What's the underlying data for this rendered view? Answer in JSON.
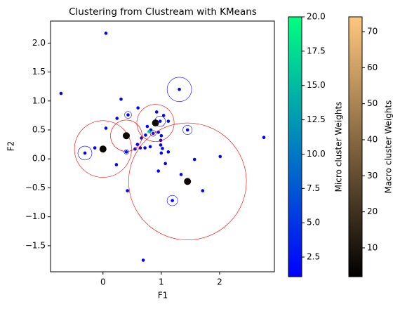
{
  "chart_data": {
    "type": "scatter",
    "title": "Clustering from Clustream with KMeans",
    "x_label": "F1",
    "y_label": "F2",
    "xlim": [
      -0.9,
      2.94
    ],
    "ylim": [
      -1.95,
      2.38
    ],
    "xticks": [
      0,
      1,
      2
    ],
    "yticks": [
      {
        "value": -1.5,
        "label": "−1.5"
      },
      {
        "value": -1.0,
        "label": "−1.0"
      },
      {
        "value": -0.5,
        "label": "−0.5"
      },
      {
        "value": 0.0,
        "label": "0.0"
      },
      {
        "value": 0.5,
        "label": "0.5"
      },
      {
        "value": 1.0,
        "label": "1.0"
      },
      {
        "value": 1.5,
        "label": "1.5"
      },
      {
        "value": 2.0,
        "label": "2.0"
      }
    ],
    "micro_clusters": {
      "ring_color": "#0000ff",
      "x": [
        0.05,
        -0.72,
        1.31,
        0.31,
        0.43,
        0.6,
        0.24,
        1.04,
        0.92,
        0.05,
        1.45,
        1.12,
        0.98,
        0.76,
        0.82,
        0.73,
        0.66,
        0.86,
        0.95,
        1.0,
        0.99,
        0.99,
        1.02,
        1.12,
        1.0,
        0.72,
        0.64,
        0.59,
        0.55,
        0.81,
        0.4,
        -0.14,
        -0.31,
        0.23,
        1.07,
        0.95,
        1.34,
        1.57,
        2.01,
        2.76,
        0.42,
        1.71,
        1.19,
        0.69,
        0.79
      ],
      "y": [
        2.17,
        1.13,
        1.2,
        1.03,
        0.76,
        0.88,
        0.7,
        0.75,
        0.81,
        0.53,
        0.5,
        0.65,
        0.65,
        0.56,
        0.5,
        0.41,
        0.36,
        0.44,
        0.46,
        0.4,
        0.32,
        0.24,
        0.18,
        0.12,
        0.1,
        0.19,
        0.19,
        0.25,
        0.17,
        0.21,
        0.12,
        0.19,
        0.1,
        -0.1,
        -0.08,
        -0.21,
        -0.27,
        -0.01,
        0.04,
        0.37,
        -0.55,
        -0.55,
        -0.72,
        -1.75,
        0.47
      ],
      "weights": [
        1.2,
        1.2,
        1.5,
        1.2,
        1.3,
        1.5,
        1.2,
        1.2,
        1.3,
        1.2,
        1.3,
        1.2,
        1.4,
        1.6,
        1.8,
        1.5,
        1.3,
        2.5,
        1.4,
        1.3,
        1.2,
        1.2,
        1.2,
        1.2,
        1.3,
        1.3,
        1.2,
        1.2,
        1.2,
        1.2,
        1.3,
        1.2,
        1.4,
        1.2,
        1.2,
        1.2,
        1.2,
        1.2,
        1.2,
        1.2,
        1.2,
        1.2,
        1.3,
        1.2,
        16
      ],
      "radii": [
        0.02,
        0.02,
        0.21,
        0.02,
        0.06,
        0.02,
        0.02,
        0.02,
        0.02,
        0.02,
        0.08,
        0.02,
        0.09,
        0.02,
        0.02,
        0.02,
        0.02,
        0.05,
        0.02,
        0.02,
        0.02,
        0.02,
        0.02,
        0.02,
        0.02,
        0.02,
        0.02,
        0.02,
        0.02,
        0.02,
        0.04,
        0.02,
        0.12,
        0.02,
        0.02,
        0.02,
        0.02,
        0.02,
        0.02,
        0.02,
        0.02,
        0.02,
        0.09,
        0.02,
        0.02
      ]
    },
    "macro_clusters": {
      "ring_color": "#ff0000",
      "x": [
        0.0,
        0.4,
        0.9,
        1.45
      ],
      "y": [
        0.17,
        0.4,
        0.62,
        -0.39
      ],
      "weights": [
        4,
        5,
        6,
        5
      ],
      "radii": [
        0.49,
        0.27,
        0.32,
        1.01
      ]
    },
    "colorbars": [
      {
        "label": "Micro cluster Weights",
        "lim": [
          1.07,
          20
        ],
        "colormap": [
          "#0000ff",
          "#00ff80"
        ],
        "ticks": [
          {
            "value": 2.5,
            "label": "2.5"
          },
          {
            "value": 5,
            "label": "5.0"
          },
          {
            "value": 7.5,
            "label": "7.5"
          },
          {
            "value": 10,
            "label": "10.0"
          },
          {
            "value": 12.5,
            "label": "12.5"
          },
          {
            "value": 15,
            "label": "15.0"
          },
          {
            "value": 17.5,
            "label": "17.5"
          },
          {
            "value": 20,
            "label": "20.0"
          }
        ]
      },
      {
        "label": "Macro cluster Weights",
        "lim": [
          2.0,
          74.1
        ],
        "colormap": [
          "#000000",
          "#ffc77f"
        ],
        "ticks": [
          10,
          20,
          30,
          40,
          50,
          60,
          70
        ]
      }
    ]
  }
}
